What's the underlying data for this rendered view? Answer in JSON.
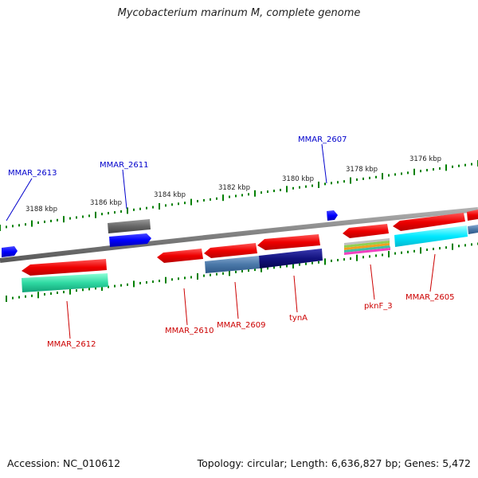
{
  "title": "Mycobacterium marinum M, complete genome",
  "footer": {
    "accession": "Accession: NC_010612",
    "stats": "Topology: circular; Length: 6,636,827 bp; Genes: 5,472"
  },
  "scale_labels": [
    "3188 kbp",
    "3186 kbp",
    "3184 kbp",
    "3182 kbp",
    "3180 kbp",
    "3178 kbp",
    "3176 kbp"
  ],
  "genes": {
    "top_labels": [
      "MMAR_2613",
      "MMAR_2611",
      "MMAR_2607"
    ],
    "bottom_labels": [
      "MMAR_2612",
      "MMAR_2610",
      "MMAR_2609",
      "tynA",
      "pknF_3",
      "MMAR_2605"
    ]
  },
  "colors": {
    "backbone": "#808080",
    "forward_gene": "#0000ff",
    "reverse_gene": "#ff0000",
    "top_label": "#0000cc",
    "bottom_label": "#cc0000",
    "tick": "#008000"
  }
}
